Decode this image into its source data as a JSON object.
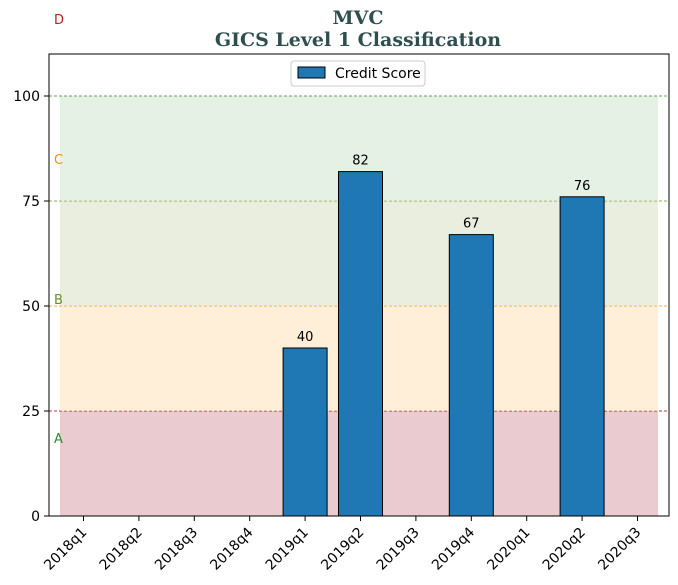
{
  "chart_data": {
    "type": "bar",
    "title": "MVC",
    "subtitle": "GICS Level 1 Classification",
    "xlabel": "",
    "ylabel": "",
    "ylim": [
      0,
      110
    ],
    "yticks": [
      0,
      25,
      50,
      75,
      100
    ],
    "categories": [
      "2018q1",
      "2018q2",
      "2018q3",
      "2018q4",
      "2019q1",
      "2019q2",
      "2019q3",
      "2019q4",
      "2020q1",
      "2020q2",
      "2020q3"
    ],
    "series": [
      {
        "name": "Credit Score",
        "values": [
          null,
          null,
          null,
          null,
          40,
          82,
          null,
          67,
          null,
          76,
          null
        ],
        "color": "#1f77b4"
      }
    ],
    "bands": [
      {
        "label": "A",
        "from": 0,
        "to": 25,
        "fill": "#d8a0a8",
        "line": "#8b0000",
        "label_color": "#2e8b2e"
      },
      {
        "label": "B",
        "from": 25,
        "to": 50,
        "fill": "#ffe0b8",
        "line": "#ff8c00",
        "label_color": "#6b8e23"
      },
      {
        "label": "C",
        "from": 50,
        "to": 75,
        "fill": "#d8e0c4",
        "line": "#6b8e23",
        "label_color": "#ff8c00"
      },
      {
        "label": "D",
        "from": 75,
        "to": 100,
        "fill": "#cde6cd",
        "line": "#2e8b2e",
        "label_color": "#b22222"
      }
    ],
    "legend_position": "top-center",
    "grid": false
  }
}
